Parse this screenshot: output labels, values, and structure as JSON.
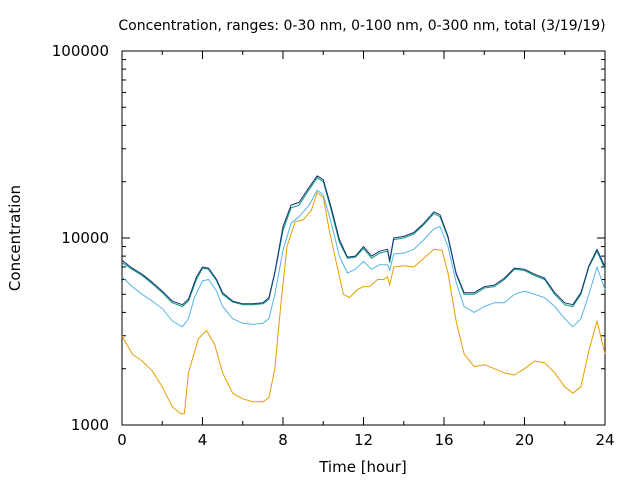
{
  "chart_data": {
    "type": "line",
    "title": "Concentration, ranges: 0-30 nm, 0-100 nm, 0-300 nm, total (3/19/19)",
    "xlabel": "Time [hour]",
    "ylabel": "Concentration",
    "xlim": [
      0,
      24
    ],
    "ylim": [
      1000,
      100000
    ],
    "yscale": "log",
    "grid": false,
    "legend": "none",
    "x_ticks": [
      0,
      4,
      8,
      12,
      16,
      20,
      24
    ],
    "x_minor_ticks": [
      2,
      6,
      10,
      14,
      18,
      22
    ],
    "y_ticks": [
      1000,
      10000,
      100000
    ],
    "x_tick_labels": [
      "0",
      "4",
      "8",
      "12",
      "16",
      "20",
      "24"
    ],
    "y_tick_labels": [
      "1000",
      "10000",
      "100000"
    ],
    "series": [
      {
        "color": "#e69f00",
        "points": [
          [
            0,
            3000
          ],
          [
            0.5,
            2400
          ],
          [
            1,
            2200
          ],
          [
            1.5,
            1950
          ],
          [
            2,
            1600
          ],
          [
            2.5,
            1250
          ],
          [
            2.9,
            1150
          ],
          [
            3.1,
            1150
          ],
          [
            3.3,
            1900
          ],
          [
            3.8,
            2900
          ],
          [
            4.2,
            3200
          ],
          [
            4.6,
            2700
          ],
          [
            5,
            1900
          ],
          [
            5.5,
            1480
          ],
          [
            6,
            1380
          ],
          [
            6.5,
            1330
          ],
          [
            7,
            1330
          ],
          [
            7.3,
            1400
          ],
          [
            7.6,
            2000
          ],
          [
            7.9,
            4500
          ],
          [
            8.2,
            9000
          ],
          [
            8.6,
            12200
          ],
          [
            9,
            12500
          ],
          [
            9.4,
            14000
          ],
          [
            9.7,
            17500
          ],
          [
            10,
            16500
          ],
          [
            10.3,
            11000
          ],
          [
            10.7,
            7000
          ],
          [
            11,
            5000
          ],
          [
            11.3,
            4800
          ],
          [
            11.7,
            5300
          ],
          [
            12,
            5500
          ],
          [
            12.3,
            5500
          ],
          [
            12.7,
            6000
          ],
          [
            13,
            6000
          ],
          [
            13.2,
            6200
          ],
          [
            13.3,
            5600
          ],
          [
            13.5,
            7000
          ],
          [
            14,
            7100
          ],
          [
            14.5,
            7000
          ],
          [
            15,
            7800
          ],
          [
            15.5,
            8700
          ],
          [
            15.9,
            8600
          ],
          [
            16.2,
            6500
          ],
          [
            16.6,
            3600
          ],
          [
            17,
            2400
          ],
          [
            17.5,
            2050
          ],
          [
            18,
            2100
          ],
          [
            18.5,
            2000
          ],
          [
            19,
            1900
          ],
          [
            19.5,
            1850
          ],
          [
            20,
            2000
          ],
          [
            20.5,
            2200
          ],
          [
            21,
            2150
          ],
          [
            21.5,
            1900
          ],
          [
            22,
            1600
          ],
          [
            22.4,
            1480
          ],
          [
            22.8,
            1600
          ],
          [
            23.2,
            2500
          ],
          [
            23.6,
            3600
          ],
          [
            24,
            2400
          ]
        ]
      },
      {
        "color": "#56b4e9",
        "points": [
          [
            0,
            6200
          ],
          [
            0.5,
            5500
          ],
          [
            1,
            5000
          ],
          [
            1.5,
            4600
          ],
          [
            2,
            4200
          ],
          [
            2.5,
            3600
          ],
          [
            3,
            3350
          ],
          [
            3.3,
            3700
          ],
          [
            3.6,
            4800
          ],
          [
            4,
            5900
          ],
          [
            4.3,
            6000
          ],
          [
            4.7,
            5200
          ],
          [
            5,
            4300
          ],
          [
            5.5,
            3700
          ],
          [
            6,
            3500
          ],
          [
            6.5,
            3450
          ],
          [
            7,
            3500
          ],
          [
            7.3,
            3700
          ],
          [
            7.6,
            5000
          ],
          [
            8,
            8600
          ],
          [
            8.4,
            12000
          ],
          [
            8.8,
            13000
          ],
          [
            9.3,
            15000
          ],
          [
            9.7,
            18000
          ],
          [
            10,
            17000
          ],
          [
            10.4,
            12000
          ],
          [
            10.8,
            8000
          ],
          [
            11.2,
            6500
          ],
          [
            11.6,
            6800
          ],
          [
            12,
            7500
          ],
          [
            12.4,
            6800
          ],
          [
            12.8,
            7200
          ],
          [
            13.2,
            7200
          ],
          [
            13.3,
            6700
          ],
          [
            13.5,
            8200
          ],
          [
            14,
            8300
          ],
          [
            14.5,
            8700
          ],
          [
            15,
            9800
          ],
          [
            15.5,
            11200
          ],
          [
            15.8,
            11500
          ],
          [
            16.2,
            9000
          ],
          [
            16.6,
            5800
          ],
          [
            17,
            4300
          ],
          [
            17.5,
            4000
          ],
          [
            18,
            4300
          ],
          [
            18.5,
            4500
          ],
          [
            19,
            4500
          ],
          [
            19.5,
            5000
          ],
          [
            20,
            5200
          ],
          [
            20.5,
            5000
          ],
          [
            21,
            4800
          ],
          [
            21.5,
            4300
          ],
          [
            22,
            3700
          ],
          [
            22.4,
            3350
          ],
          [
            22.8,
            3700
          ],
          [
            23.2,
            5000
          ],
          [
            23.6,
            7000
          ],
          [
            24,
            5300
          ]
        ]
      },
      {
        "color": "#009e73",
        "points": [
          [
            0,
            7400
          ],
          [
            0.5,
            6800
          ],
          [
            1,
            6300
          ],
          [
            1.5,
            5700
          ],
          [
            2,
            5100
          ],
          [
            2.5,
            4500
          ],
          [
            3,
            4300
          ],
          [
            3.3,
            4600
          ],
          [
            3.7,
            6000
          ],
          [
            4,
            6900
          ],
          [
            4.3,
            6800
          ],
          [
            4.7,
            5900
          ],
          [
            5,
            5000
          ],
          [
            5.5,
            4550
          ],
          [
            6,
            4400
          ],
          [
            6.5,
            4400
          ],
          [
            7,
            4450
          ],
          [
            7.3,
            4700
          ],
          [
            7.6,
            6500
          ],
          [
            8,
            11000
          ],
          [
            8.4,
            14500
          ],
          [
            8.8,
            15000
          ],
          [
            9.2,
            17500
          ],
          [
            9.7,
            21000
          ],
          [
            10,
            20000
          ],
          [
            10.4,
            14000
          ],
          [
            10.8,
            9500
          ],
          [
            11.2,
            7800
          ],
          [
            11.6,
            7900
          ],
          [
            12,
            8800
          ],
          [
            12.4,
            7800
          ],
          [
            12.8,
            8300
          ],
          [
            13.2,
            8500
          ],
          [
            13.3,
            7400
          ],
          [
            13.5,
            9800
          ],
          [
            14,
            10000
          ],
          [
            14.5,
            10500
          ],
          [
            15,
            11800
          ],
          [
            15.5,
            13500
          ],
          [
            15.8,
            13000
          ],
          [
            16.2,
            10000
          ],
          [
            16.6,
            6400
          ],
          [
            17,
            5000
          ],
          [
            17.5,
            5000
          ],
          [
            18,
            5400
          ],
          [
            18.5,
            5500
          ],
          [
            19,
            6000
          ],
          [
            19.5,
            6800
          ],
          [
            20,
            6700
          ],
          [
            20.5,
            6300
          ],
          [
            21,
            6000
          ],
          [
            21.5,
            5000
          ],
          [
            22,
            4400
          ],
          [
            22.4,
            4300
          ],
          [
            22.8,
            5000
          ],
          [
            23.2,
            7000
          ],
          [
            23.6,
            8500
          ],
          [
            24,
            6800
          ]
        ]
      },
      {
        "color": "#1f2f7f",
        "points": [
          [
            0,
            7600
          ],
          [
            0.5,
            6900
          ],
          [
            1,
            6400
          ],
          [
            1.5,
            5800
          ],
          [
            2,
            5200
          ],
          [
            2.5,
            4600
          ],
          [
            3,
            4400
          ],
          [
            3.3,
            4700
          ],
          [
            3.7,
            6200
          ],
          [
            4,
            7000
          ],
          [
            4.3,
            6900
          ],
          [
            4.7,
            6000
          ],
          [
            5,
            5100
          ],
          [
            5.5,
            4600
          ],
          [
            6,
            4450
          ],
          [
            6.5,
            4450
          ],
          [
            7,
            4500
          ],
          [
            7.3,
            4800
          ],
          [
            7.6,
            6600
          ],
          [
            8,
            11500
          ],
          [
            8.4,
            15000
          ],
          [
            8.8,
            15500
          ],
          [
            9.2,
            18000
          ],
          [
            9.7,
            21500
          ],
          [
            10,
            20500
          ],
          [
            10.4,
            14500
          ],
          [
            10.8,
            9800
          ],
          [
            11.2,
            7900
          ],
          [
            11.6,
            8000
          ],
          [
            12,
            9000
          ],
          [
            12.4,
            8000
          ],
          [
            12.8,
            8500
          ],
          [
            13.2,
            8700
          ],
          [
            13.3,
            7600
          ],
          [
            13.5,
            10000
          ],
          [
            14,
            10200
          ],
          [
            14.5,
            10700
          ],
          [
            15,
            12000
          ],
          [
            15.5,
            13800
          ],
          [
            15.8,
            13300
          ],
          [
            16.2,
            10200
          ],
          [
            16.6,
            6500
          ],
          [
            17,
            5100
          ],
          [
            17.5,
            5100
          ],
          [
            18,
            5500
          ],
          [
            18.5,
            5600
          ],
          [
            19,
            6100
          ],
          [
            19.5,
            6900
          ],
          [
            20,
            6800
          ],
          [
            20.5,
            6400
          ],
          [
            21,
            6100
          ],
          [
            21.5,
            5100
          ],
          [
            22,
            4500
          ],
          [
            22.4,
            4400
          ],
          [
            22.8,
            5100
          ],
          [
            23.2,
            7100
          ],
          [
            23.6,
            8700
          ],
          [
            24,
            7000
          ]
        ]
      }
    ]
  }
}
